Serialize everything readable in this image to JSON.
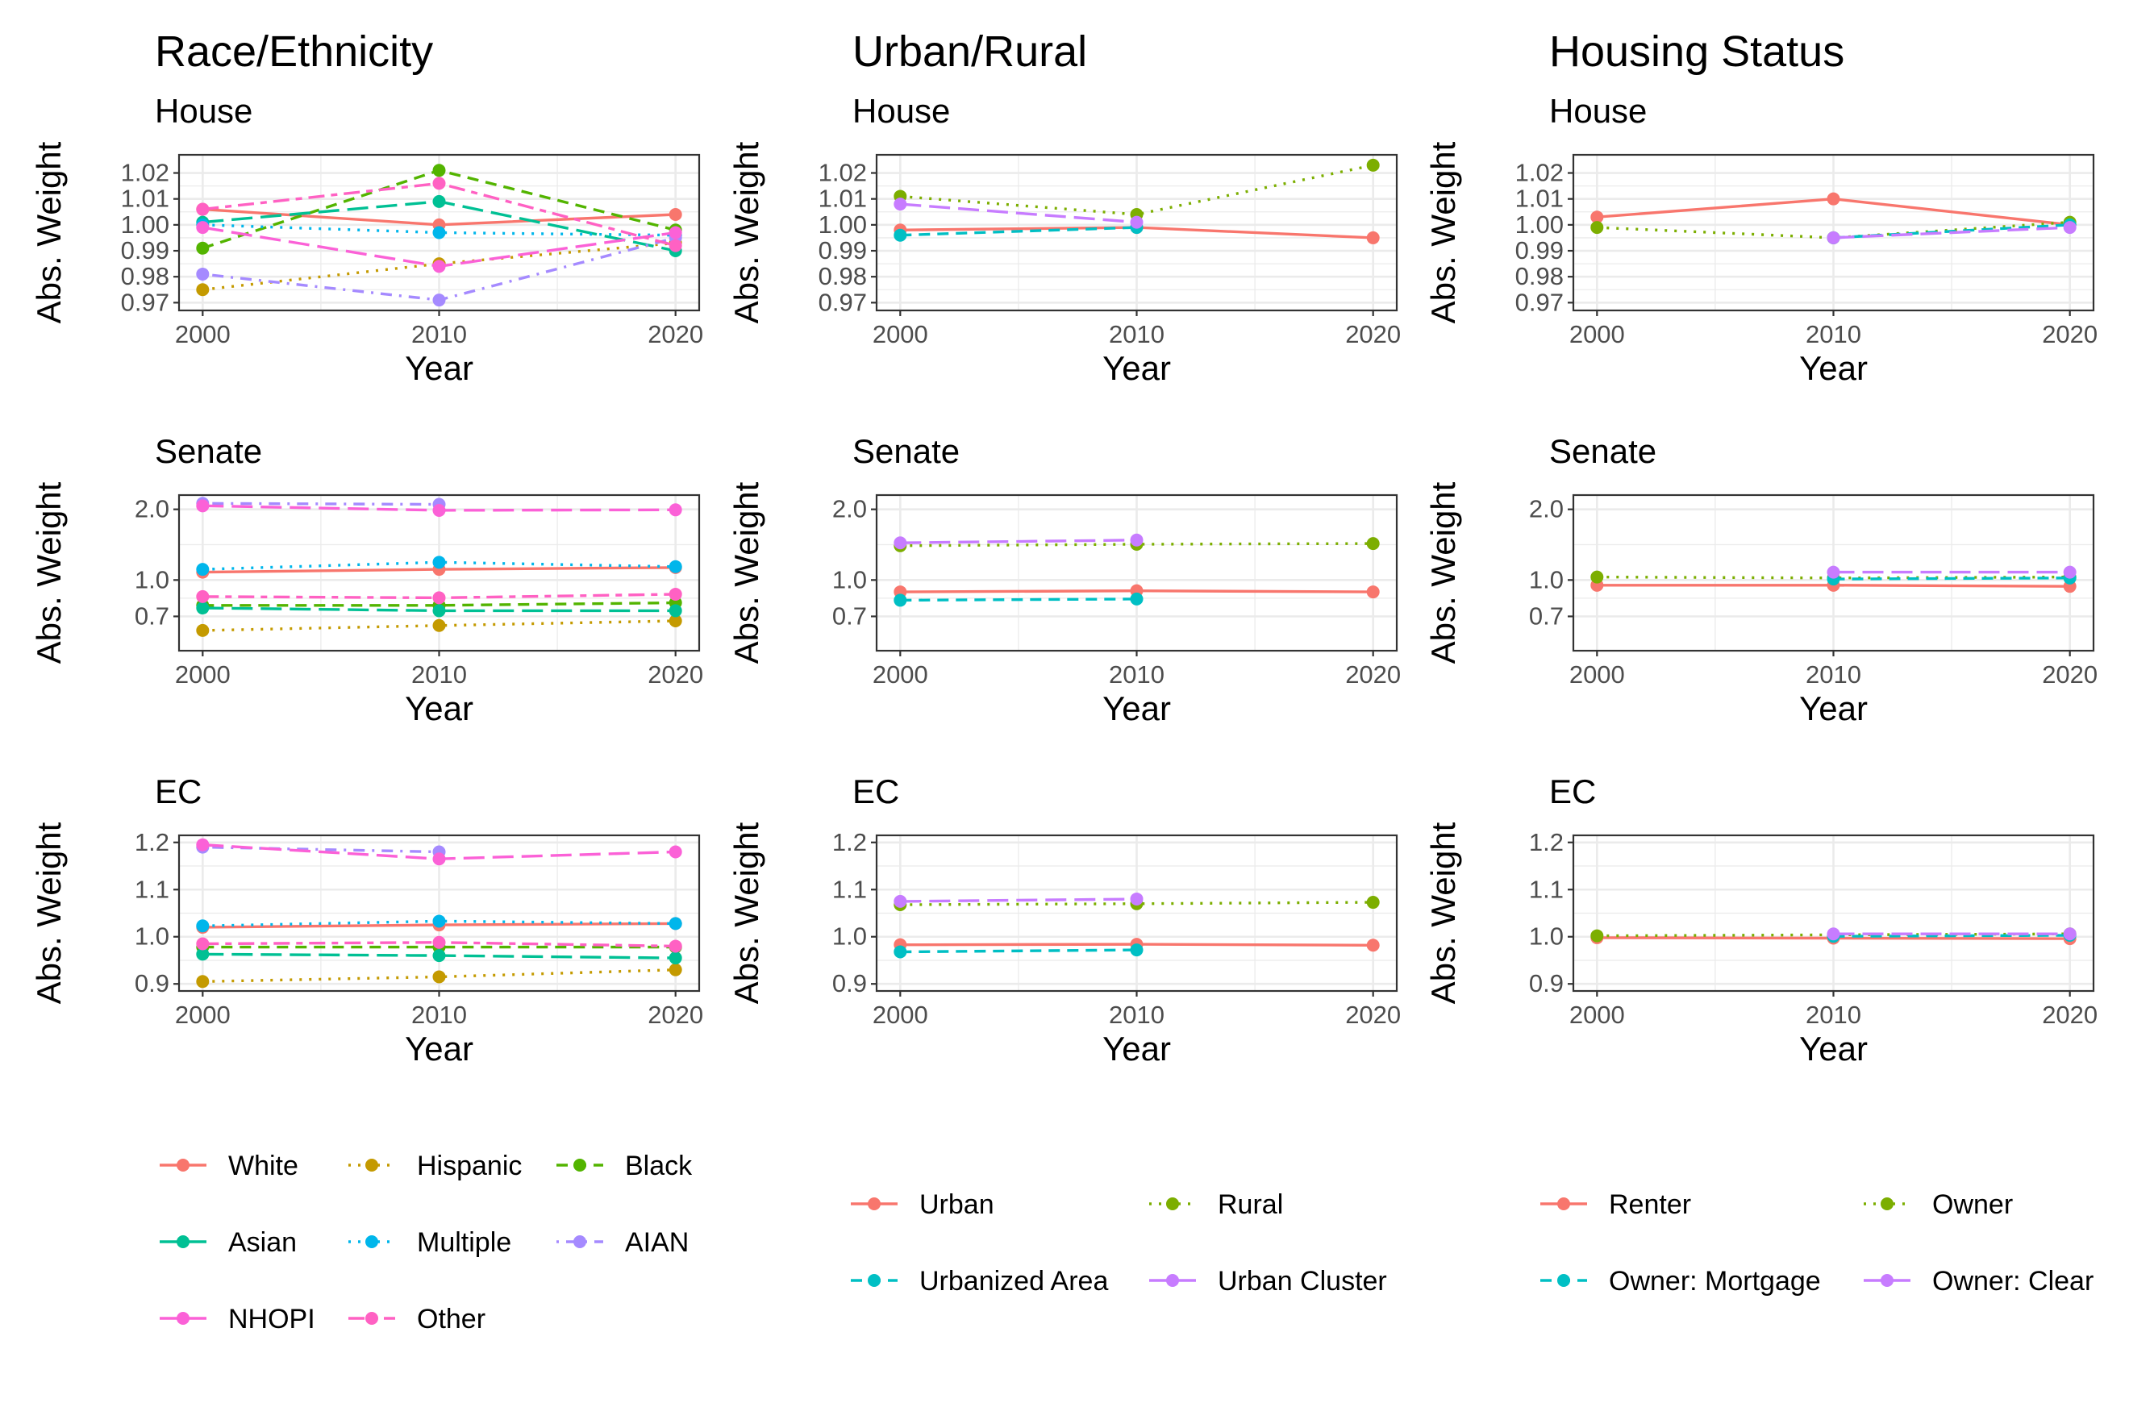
{
  "columns": [
    {
      "title": "Race/Ethnicity",
      "legend": [
        "White",
        "Hispanic",
        "Black",
        "Asian",
        "Multiple",
        "AIAN",
        "NHOPI",
        "Other"
      ]
    },
    {
      "title": "Urban/Rural",
      "legend": [
        "Urban",
        "Rural",
        "Urbanized Area",
        "Urban Cluster"
      ]
    },
    {
      "title": "Housing Status",
      "legend": [
        "Renter",
        "Owner",
        "Owner: Mortgage",
        "Owner: Clear"
      ]
    }
  ],
  "rows": [
    {
      "title": "House"
    },
    {
      "title": "Senate"
    },
    {
      "title": "EC"
    }
  ],
  "axis_labels": {
    "x": "Year",
    "y": "Abs. Weight"
  },
  "series_styles": {
    "White": {
      "color": "#F8766D",
      "dash": "solid"
    },
    "Hispanic": {
      "color": "#C49A00",
      "dash": "dotted"
    },
    "Black": {
      "color": "#53B400",
      "dash": "dashed"
    },
    "Asian": {
      "color": "#00C094",
      "dash": "longdash"
    },
    "Multiple": {
      "color": "#00B6EB",
      "dash": "dotted"
    },
    "AIAN": {
      "color": "#A58AFF",
      "dash": "dotdash"
    },
    "NHOPI": {
      "color": "#FB61D7",
      "dash": "longdash"
    },
    "Other": {
      "color": "#FF61C3",
      "dash": "twodash"
    },
    "Urban": {
      "color": "#F8766D",
      "dash": "solid"
    },
    "Rural": {
      "color": "#7CAE00",
      "dash": "dotted"
    },
    "Urbanized Area": {
      "color": "#00BFC4",
      "dash": "dashed"
    },
    "Urban Cluster": {
      "color": "#C77CFF",
      "dash": "longdash"
    },
    "Renter": {
      "color": "#F8766D",
      "dash": "solid"
    },
    "Owner": {
      "color": "#7CAE00",
      "dash": "dotted"
    },
    "Owner: Mortgage": {
      "color": "#00BFC4",
      "dash": "dashed"
    },
    "Owner: Clear": {
      "color": "#C77CFF",
      "dash": "longdash"
    }
  },
  "chart_data": [
    {
      "type": "line",
      "column": "Race/Ethnicity",
      "title": "House",
      "xlabel": "Year",
      "ylabel": "Abs. Weight",
      "x": [
        2000,
        2010,
        2020
      ],
      "xlim": [
        1999,
        2021
      ],
      "ylim": [
        0.967,
        1.027
      ],
      "yticks": [
        0.97,
        0.98,
        0.99,
        1.0,
        1.01,
        1.02
      ],
      "ytick_labels": [
        "0.97",
        "0.98",
        "0.99",
        "1.00",
        "1.01",
        "1.02"
      ],
      "series": [
        {
          "name": "White",
          "values": [
            1.006,
            1.0,
            1.004
          ]
        },
        {
          "name": "Hispanic",
          "values": [
            0.975,
            0.985,
            0.993
          ]
        },
        {
          "name": "Black",
          "values": [
            0.991,
            1.021,
            0.998
          ]
        },
        {
          "name": "Asian",
          "values": [
            1.001,
            1.009,
            0.99
          ]
        },
        {
          "name": "Multiple",
          "values": [
            1.0,
            0.997,
            0.996
          ]
        },
        {
          "name": "AIAN",
          "values": [
            0.981,
            0.971,
            0.995
          ]
        },
        {
          "name": "NHOPI",
          "values": [
            0.999,
            0.984,
            0.997
          ]
        },
        {
          "name": "Other",
          "values": [
            1.006,
            1.016,
            0.992
          ]
        }
      ]
    },
    {
      "type": "line",
      "column": "Urban/Rural",
      "title": "House",
      "xlabel": "Year",
      "ylabel": "Abs. Weight",
      "x": [
        2000,
        2010,
        2020
      ],
      "xlim": [
        1999,
        2021
      ],
      "ylim": [
        0.967,
        1.027
      ],
      "yticks": [
        0.97,
        0.98,
        0.99,
        1.0,
        1.01,
        1.02
      ],
      "ytick_labels": [
        "0.97",
        "0.98",
        "0.99",
        "1.00",
        "1.01",
        "1.02"
      ],
      "series": [
        {
          "name": "Urban",
          "values": [
            0.998,
            0.999,
            0.995
          ]
        },
        {
          "name": "Rural",
          "values": [
            1.011,
            1.004,
            1.023
          ]
        },
        {
          "name": "Urbanized Area",
          "values": [
            0.996,
            0.999,
            null
          ]
        },
        {
          "name": "Urban Cluster",
          "values": [
            1.008,
            1.001,
            null
          ]
        }
      ]
    },
    {
      "type": "line",
      "column": "Housing Status",
      "title": "House",
      "xlabel": "Year",
      "ylabel": "Abs. Weight",
      "x": [
        2000,
        2010,
        2020
      ],
      "xlim": [
        1999,
        2021
      ],
      "ylim": [
        0.967,
        1.027
      ],
      "yticks": [
        0.97,
        0.98,
        0.99,
        1.0,
        1.01,
        1.02
      ],
      "ytick_labels": [
        "0.97",
        "0.98",
        "0.99",
        "1.00",
        "1.01",
        "1.02"
      ],
      "series": [
        {
          "name": "Renter",
          "values": [
            1.003,
            1.01,
            1.0
          ]
        },
        {
          "name": "Owner",
          "values": [
            0.999,
            0.995,
            1.001
          ]
        },
        {
          "name": "Owner: Mortgage",
          "values": [
            null,
            0.995,
            1.0
          ]
        },
        {
          "name": "Owner: Clear",
          "values": [
            null,
            0.995,
            0.999
          ]
        }
      ]
    },
    {
      "type": "line",
      "column": "Race/Ethnicity",
      "title": "Senate",
      "xlabel": "Year",
      "ylabel": "Abs. Weight",
      "yscale": "log",
      "x": [
        2000,
        2010,
        2020
      ],
      "xlim": [
        1999,
        2021
      ],
      "ylim": [
        0.5,
        2.3
      ],
      "yticks": [
        0.7,
        1.0,
        2.0
      ],
      "ytick_labels": [
        "0.7",
        "1.0",
        "2.0"
      ],
      "series": [
        {
          "name": "White",
          "values": [
            1.08,
            1.11,
            1.13
          ]
        },
        {
          "name": "Hispanic",
          "values": [
            0.61,
            0.64,
            0.67
          ]
        },
        {
          "name": "Black",
          "values": [
            0.78,
            0.78,
            0.8
          ]
        },
        {
          "name": "Asian",
          "values": [
            0.76,
            0.74,
            0.74
          ]
        },
        {
          "name": "Multiple",
          "values": [
            1.11,
            1.19,
            1.14
          ]
        },
        {
          "name": "AIAN",
          "values": [
            2.12,
            2.1,
            null
          ]
        },
        {
          "name": "NHOPI",
          "values": [
            2.07,
            1.98,
            1.99
          ]
        },
        {
          "name": "Other",
          "values": [
            0.85,
            0.84,
            0.87
          ]
        }
      ]
    },
    {
      "type": "line",
      "column": "Urban/Rural",
      "title": "Senate",
      "xlabel": "Year",
      "ylabel": "Abs. Weight",
      "yscale": "log",
      "x": [
        2000,
        2010,
        2020
      ],
      "xlim": [
        1999,
        2021
      ],
      "ylim": [
        0.5,
        2.3
      ],
      "yticks": [
        0.7,
        1.0,
        2.0
      ],
      "ytick_labels": [
        "0.7",
        "1.0",
        "2.0"
      ],
      "series": [
        {
          "name": "Urban",
          "values": [
            0.89,
            0.9,
            0.89
          ]
        },
        {
          "name": "Rural",
          "values": [
            1.4,
            1.42,
            1.43
          ]
        },
        {
          "name": "Urbanized Area",
          "values": [
            0.82,
            0.83,
            null
          ]
        },
        {
          "name": "Urban Cluster",
          "values": [
            1.44,
            1.48,
            null
          ]
        }
      ]
    },
    {
      "type": "line",
      "column": "Housing Status",
      "title": "Senate",
      "xlabel": "Year",
      "ylabel": "Abs. Weight",
      "yscale": "log",
      "x": [
        2000,
        2010,
        2020
      ],
      "xlim": [
        1999,
        2021
      ],
      "ylim": [
        0.5,
        2.3
      ],
      "yticks": [
        0.7,
        1.0,
        2.0
      ],
      "ytick_labels": [
        "0.7",
        "1.0",
        "2.0"
      ],
      "series": [
        {
          "name": "Renter",
          "values": [
            0.95,
            0.95,
            0.94
          ]
        },
        {
          "name": "Owner",
          "values": [
            1.03,
            1.02,
            1.03
          ]
        },
        {
          "name": "Owner: Mortgage",
          "values": [
            null,
            1.01,
            1.02
          ]
        },
        {
          "name": "Owner: Clear",
          "values": [
            null,
            1.08,
            1.08
          ]
        }
      ]
    },
    {
      "type": "line",
      "column": "Race/Ethnicity",
      "title": "EC",
      "xlabel": "Year",
      "ylabel": "Abs. Weight",
      "x": [
        2000,
        2010,
        2020
      ],
      "xlim": [
        1999,
        2021
      ],
      "ylim": [
        0.885,
        1.215
      ],
      "yticks": [
        0.9,
        1.0,
        1.1,
        1.2
      ],
      "ytick_labels": [
        "0.9",
        "1.0",
        "1.1",
        "1.2"
      ],
      "series": [
        {
          "name": "White",
          "values": [
            1.02,
            1.025,
            1.028
          ]
        },
        {
          "name": "Hispanic",
          "values": [
            0.905,
            0.915,
            0.93
          ]
        },
        {
          "name": "Black",
          "values": [
            0.978,
            0.978,
            0.978
          ]
        },
        {
          "name": "Asian",
          "values": [
            0.963,
            0.96,
            0.955
          ]
        },
        {
          "name": "Multiple",
          "values": [
            1.023,
            1.033,
            1.028
          ]
        },
        {
          "name": "AIAN",
          "values": [
            1.19,
            1.18,
            null
          ]
        },
        {
          "name": "NHOPI",
          "values": [
            1.195,
            1.165,
            1.18
          ]
        },
        {
          "name": "Other",
          "values": [
            0.985,
            0.988,
            0.98
          ]
        }
      ]
    },
    {
      "type": "line",
      "column": "Urban/Rural",
      "title": "EC",
      "xlabel": "Year",
      "ylabel": "Abs. Weight",
      "x": [
        2000,
        2010,
        2020
      ],
      "xlim": [
        1999,
        2021
      ],
      "ylim": [
        0.885,
        1.215
      ],
      "yticks": [
        0.9,
        1.0,
        1.1,
        1.2
      ],
      "ytick_labels": [
        "0.9",
        "1.0",
        "1.1",
        "1.2"
      ],
      "series": [
        {
          "name": "Urban",
          "values": [
            0.983,
            0.984,
            0.982
          ]
        },
        {
          "name": "Rural",
          "values": [
            1.068,
            1.07,
            1.073
          ]
        },
        {
          "name": "Urbanized Area",
          "values": [
            0.968,
            0.972,
            null
          ]
        },
        {
          "name": "Urban Cluster",
          "values": [
            1.075,
            1.08,
            null
          ]
        }
      ]
    },
    {
      "type": "line",
      "column": "Housing Status",
      "title": "EC",
      "xlabel": "Year",
      "ylabel": "Abs. Weight",
      "x": [
        2000,
        2010,
        2020
      ],
      "xlim": [
        1999,
        2021
      ],
      "ylim": [
        0.885,
        1.215
      ],
      "yticks": [
        0.9,
        1.0,
        1.1,
        1.2
      ],
      "ytick_labels": [
        "0.9",
        "1.0",
        "1.1",
        "1.2"
      ],
      "series": [
        {
          "name": "Renter",
          "values": [
            0.998,
            0.997,
            0.996
          ]
        },
        {
          "name": "Owner",
          "values": [
            1.002,
            1.004,
            1.006
          ]
        },
        {
          "name": "Owner: Mortgage",
          "values": [
            null,
            1.001,
            1.003
          ]
        },
        {
          "name": "Owner: Clear",
          "values": [
            null,
            1.006,
            1.006
          ]
        }
      ]
    }
  ]
}
